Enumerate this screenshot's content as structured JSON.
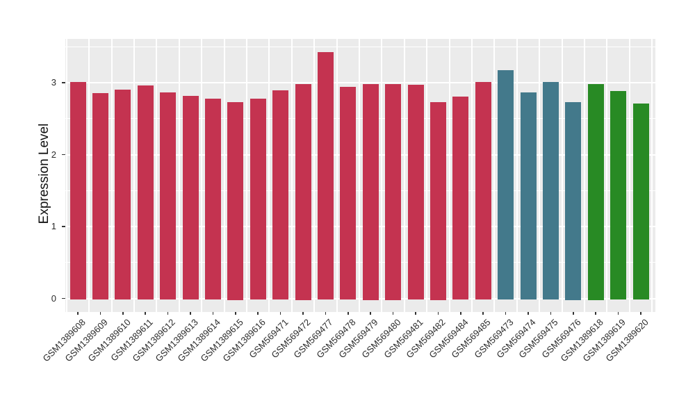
{
  "chart_data": {
    "type": "bar",
    "title": "",
    "xlabel": "",
    "ylabel": "Expression Level",
    "ylim": [
      0,
      3.61
    ],
    "yticks_major": [
      0,
      1,
      2,
      3
    ],
    "yticks_minor": [
      0.5,
      1.5,
      2.5,
      3.5
    ],
    "grid": true,
    "legend_position": "none",
    "panel_bg": "#EBEBEB",
    "grid_color": "#FFFFFF",
    "tick_color": "#333333",
    "group_colors": {
      "crimson": "#C43350",
      "teal": "#43798B",
      "green": "#288A24"
    },
    "bars": [
      {
        "label": "GSM1389608",
        "value": 3.03,
        "group": "crimson"
      },
      {
        "label": "GSM1389609",
        "value": 2.87,
        "group": "crimson"
      },
      {
        "label": "GSM1389610",
        "value": 2.92,
        "group": "crimson"
      },
      {
        "label": "GSM1389611",
        "value": 2.98,
        "group": "crimson"
      },
      {
        "label": "GSM1389612",
        "value": 2.88,
        "group": "crimson"
      },
      {
        "label": "GSM1389613",
        "value": 2.84,
        "group": "crimson"
      },
      {
        "label": "GSM1389614",
        "value": 2.8,
        "group": "crimson"
      },
      {
        "label": "GSM1389615",
        "value": 2.75,
        "group": "crimson"
      },
      {
        "label": "GSM1389616",
        "value": 2.8,
        "group": "crimson"
      },
      {
        "label": "GSM569471",
        "value": 2.91,
        "group": "crimson"
      },
      {
        "label": "GSM569472",
        "value": 3.0,
        "group": "crimson"
      },
      {
        "label": "GSM569477",
        "value": 3.44,
        "group": "crimson"
      },
      {
        "label": "GSM569478",
        "value": 2.96,
        "group": "crimson"
      },
      {
        "label": "GSM569479",
        "value": 3.0,
        "group": "crimson"
      },
      {
        "label": "GSM569480",
        "value": 3.0,
        "group": "crimson"
      },
      {
        "label": "GSM569481",
        "value": 2.99,
        "group": "crimson"
      },
      {
        "label": "GSM569482",
        "value": 2.75,
        "group": "crimson"
      },
      {
        "label": "GSM569484",
        "value": 2.83,
        "group": "crimson"
      },
      {
        "label": "GSM569485",
        "value": 3.03,
        "group": "crimson"
      },
      {
        "label": "GSM569473",
        "value": 3.19,
        "group": "teal"
      },
      {
        "label": "GSM569474",
        "value": 2.88,
        "group": "teal"
      },
      {
        "label": "GSM569475",
        "value": 3.03,
        "group": "teal"
      },
      {
        "label": "GSM569476",
        "value": 2.75,
        "group": "teal"
      },
      {
        "label": "GSM1389618",
        "value": 3.0,
        "group": "green"
      },
      {
        "label": "GSM1389619",
        "value": 2.9,
        "group": "green"
      },
      {
        "label": "GSM1389620",
        "value": 2.73,
        "group": "green"
      }
    ]
  }
}
